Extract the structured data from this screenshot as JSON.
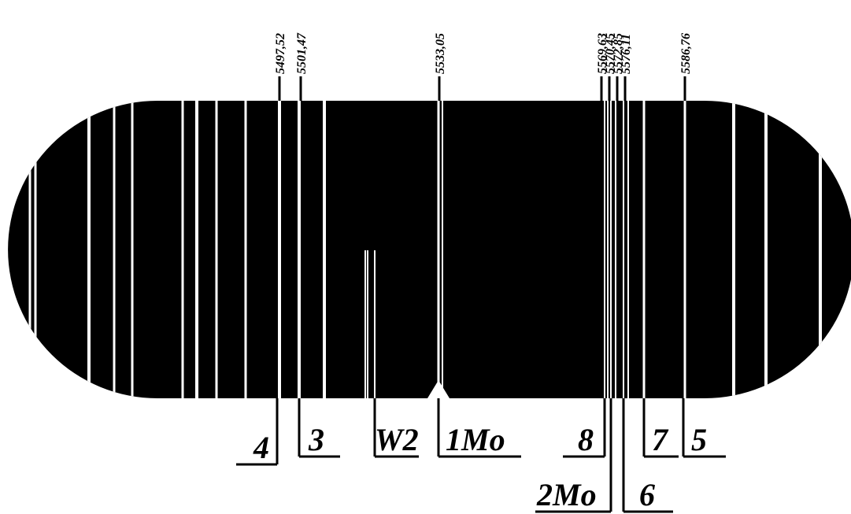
{
  "wavelength_labels": [
    "5497,52",
    "5501,47",
    "5533,05",
    "5569,63",
    "5570,45",
    "5572,85",
    "5576,11",
    "5586,76"
  ],
  "line_labels": [
    "4",
    "3",
    "W2",
    "1Mo",
    "8",
    "2Mo",
    "6",
    "7",
    "5"
  ]
}
